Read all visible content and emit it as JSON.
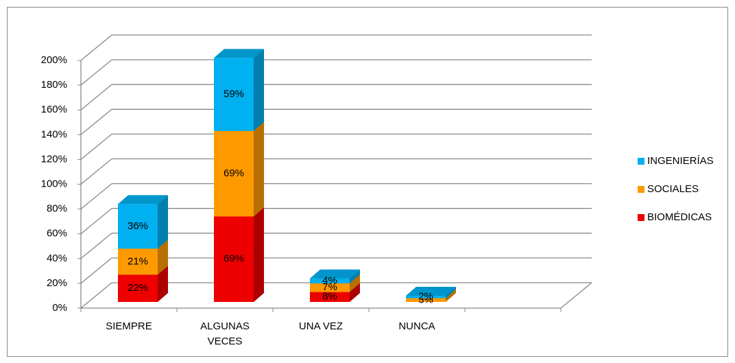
{
  "chart_data": {
    "type": "bar3d_stacked",
    "categories": [
      "SIEMPRE",
      "ALGUNAS VECES",
      "UNA VEZ",
      "NUNCA"
    ],
    "series": [
      {
        "name": "BIOMÉDICAS",
        "color": "#ee0000",
        "values": [
          22,
          69,
          8,
          null
        ],
        "value_labels": [
          "22%",
          "69%",
          "8%",
          null
        ]
      },
      {
        "name": "SOCIALES",
        "color": "#ff9900",
        "values": [
          21,
          69,
          7,
          3
        ],
        "value_labels": [
          "21%",
          "69%",
          "7%",
          "3%"
        ]
      },
      {
        "name": "INGENIERÍAS",
        "color": "#00b0f0",
        "values": [
          36,
          59,
          4,
          2
        ],
        "value_labels": [
          "36%",
          "59%",
          "4%",
          "2%"
        ]
      }
    ],
    "ylim": [
      0,
      200
    ],
    "yticks": [
      {
        "value": 0,
        "label": "0%"
      },
      {
        "value": 20,
        "label": "20%"
      },
      {
        "value": 40,
        "label": "40%"
      },
      {
        "value": 60,
        "label": "60%"
      },
      {
        "value": 80,
        "label": "80%"
      },
      {
        "value": 100,
        "label": "100%"
      },
      {
        "value": 120,
        "label": "120%"
      },
      {
        "value": 140,
        "label": "140%"
      },
      {
        "value": 160,
        "label": "160%"
      },
      {
        "value": 180,
        "label": "180%"
      },
      {
        "value": 200,
        "label": "200%"
      }
    ],
    "grid": true,
    "legend": "right"
  }
}
